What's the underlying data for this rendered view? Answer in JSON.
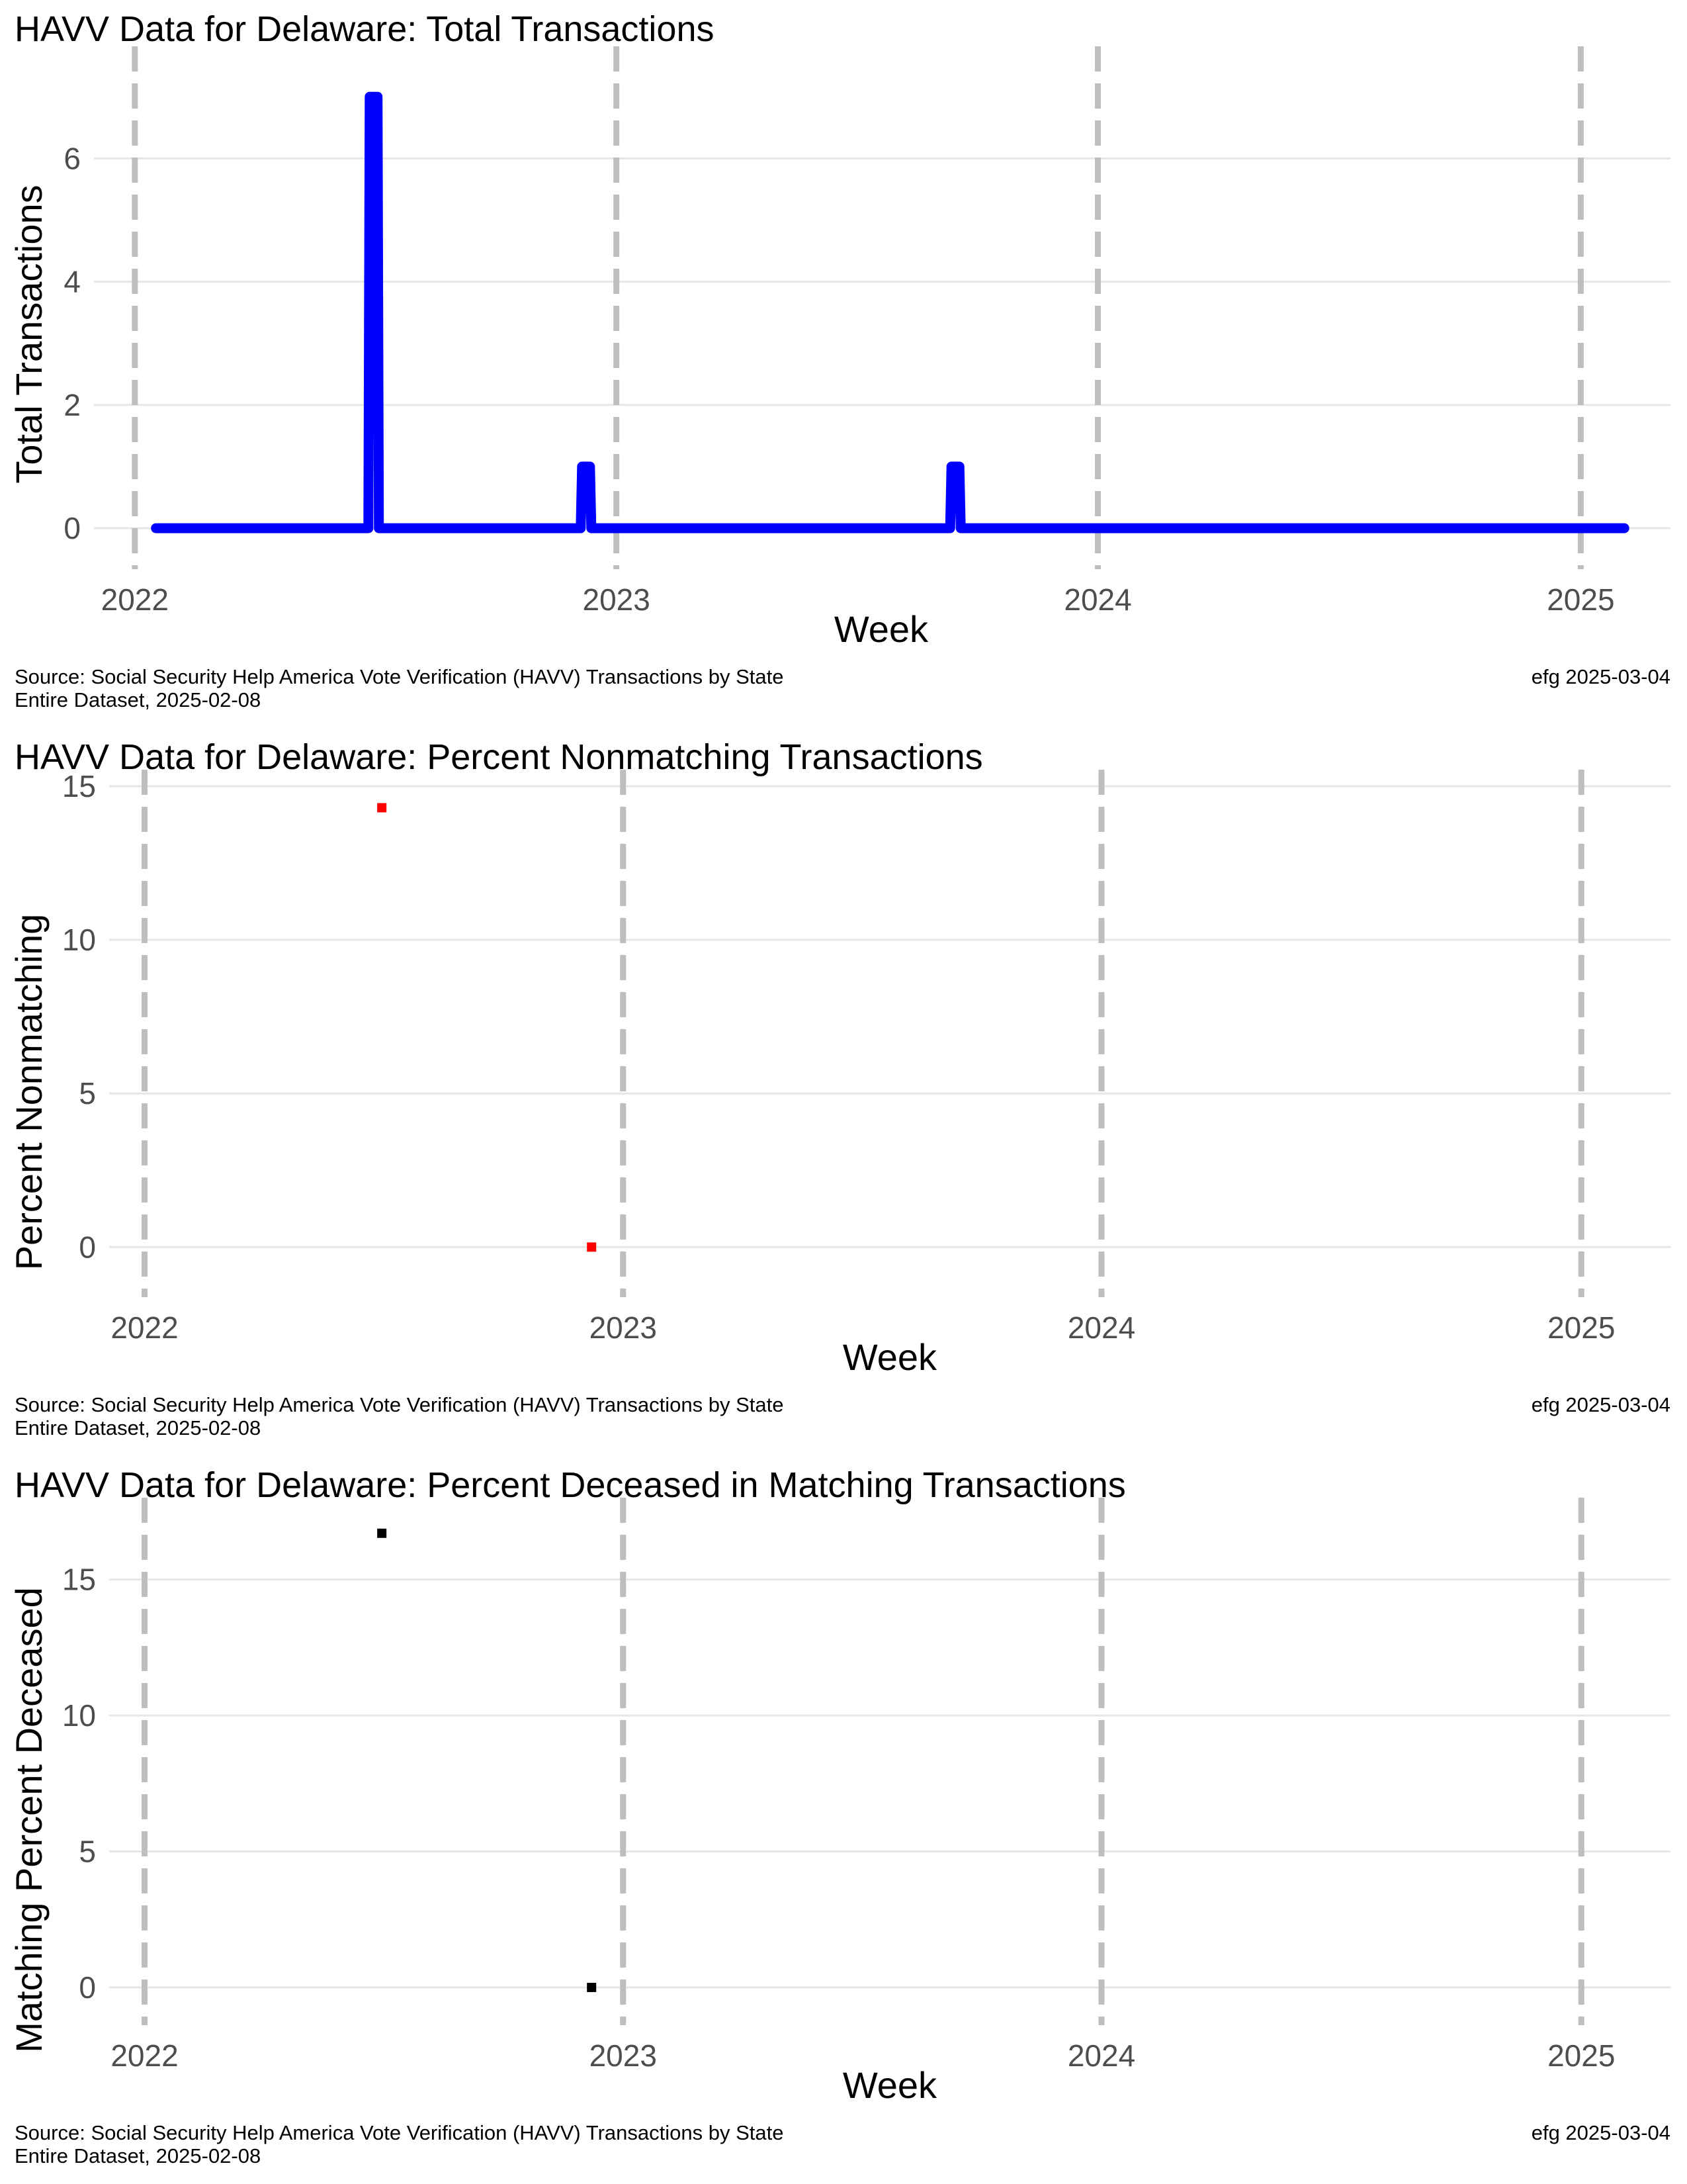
{
  "caption": {
    "source_line1": "Source:  Social Security Help America Vote Verification (HAVV) Transactions by State",
    "source_line2": "Entire Dataset, 2025-02-08",
    "credit": "efg 2025-03-04"
  },
  "chart_data": [
    {
      "type": "line",
      "title": "HAVV Data for Delaware:  Total Transactions",
      "xlabel": "Week",
      "ylabel": "Total Transactions",
      "x_ticks": [
        "2022",
        "2023",
        "2024",
        "2025"
      ],
      "y_ticks": [
        "0",
        "2",
        "4",
        "6"
      ],
      "xlim": [
        "2021-12-01",
        "2025-03-10"
      ],
      "ylim": [
        -0.45,
        7.55
      ],
      "year_lines": [
        "2022-01-01",
        "2023-01-01",
        "2024-01-01",
        "2025-01-01"
      ],
      "series": [
        {
          "color": "#0000ff",
          "points": [
            {
              "x": "2022-01-17",
              "y": 0
            },
            {
              "x": "2022-06-27",
              "y": 0
            },
            {
              "x": "2022-06-28",
              "y": 7
            },
            {
              "x": "2022-07-04",
              "y": 7
            },
            {
              "x": "2022-07-05",
              "y": 0
            },
            {
              "x": "2022-12-05",
              "y": 0
            },
            {
              "x": "2022-12-06",
              "y": 1
            },
            {
              "x": "2022-12-12",
              "y": 1
            },
            {
              "x": "2022-12-13",
              "y": 0
            },
            {
              "x": "2023-09-11",
              "y": 0
            },
            {
              "x": "2023-09-12",
              "y": 1
            },
            {
              "x": "2023-09-18",
              "y": 1
            },
            {
              "x": "2023-09-19",
              "y": 0
            },
            {
              "x": "2025-02-03",
              "y": 0
            }
          ]
        }
      ]
    },
    {
      "type": "scatter",
      "title": "HAVV Data for Delaware:  Percent Nonmatching Transactions",
      "xlabel": "Week",
      "ylabel": "Percent Nonmatching",
      "x_ticks": [
        "2022",
        "2023",
        "2024",
        "2025"
      ],
      "y_ticks": [
        "0",
        "5",
        "10",
        "15"
      ],
      "xlim": [
        "2021-12-05",
        "2025-03-10"
      ],
      "ylim": [
        -1.2,
        15.0
      ],
      "year_lines": [
        "2022-01-01",
        "2023-01-01",
        "2024-01-01",
        "2025-01-01"
      ],
      "series": [
        {
          "color": "#ff0000",
          "points": [
            {
              "x": "2022-07-01",
              "y": 14.3
            },
            {
              "x": "2022-12-08",
              "y": 0
            }
          ]
        }
      ]
    },
    {
      "type": "scatter",
      "title": "HAVV Data for Delaware:  Percent Deceased in Matching Transactions",
      "xlabel": "Week",
      "ylabel": "Matching Percent Deceased",
      "x_ticks": [
        "2022",
        "2023",
        "2024",
        "2025"
      ],
      "y_ticks": [
        "0",
        "5",
        "10",
        "15"
      ],
      "xlim": [
        "2021-12-05",
        "2025-03-10"
      ],
      "ylim": [
        -0.9,
        17.4
      ],
      "year_lines": [
        "2022-01-01",
        "2023-01-01",
        "2024-01-01",
        "2025-01-01"
      ],
      "series": [
        {
          "color": "#000000",
          "points": [
            {
              "x": "2022-07-01",
              "y": 16.7
            },
            {
              "x": "2022-12-08",
              "y": 0
            }
          ]
        }
      ]
    }
  ]
}
